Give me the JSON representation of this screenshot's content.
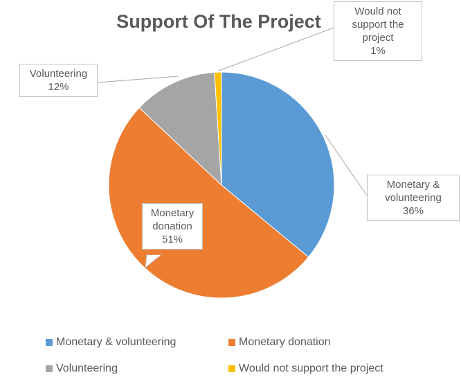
{
  "chart_data": {
    "type": "pie",
    "title": "Support Of The Project",
    "categories": [
      "Monetary & volunteering",
      "Monetary donation",
      "Volunteering",
      "Would not support the project"
    ],
    "values": [
      36,
      51,
      12,
      1
    ],
    "value_labels": [
      "36%",
      "51%",
      "12%",
      "1%"
    ],
    "colors": [
      "#5b9bd5",
      "#ed7d31",
      "#a5a5a5",
      "#ffc000"
    ],
    "legend": "bottom"
  }
}
